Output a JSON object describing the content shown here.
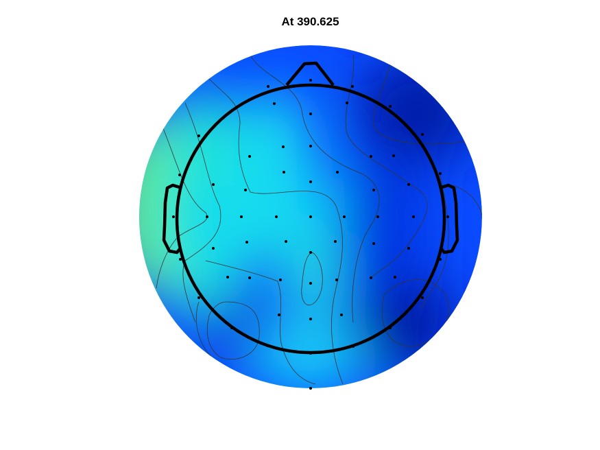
{
  "title": "At 390.625",
  "colors": {
    "background": "#ffffff",
    "outline": "#000000",
    "contour": "#333333",
    "electrode": "#000000"
  },
  "colormap": "jet",
  "icons": {
    "head": "head-outline-icon",
    "nose": "nose-icon",
    "ear": "ear-icon",
    "electrode": "electrode-dot-icon"
  }
}
